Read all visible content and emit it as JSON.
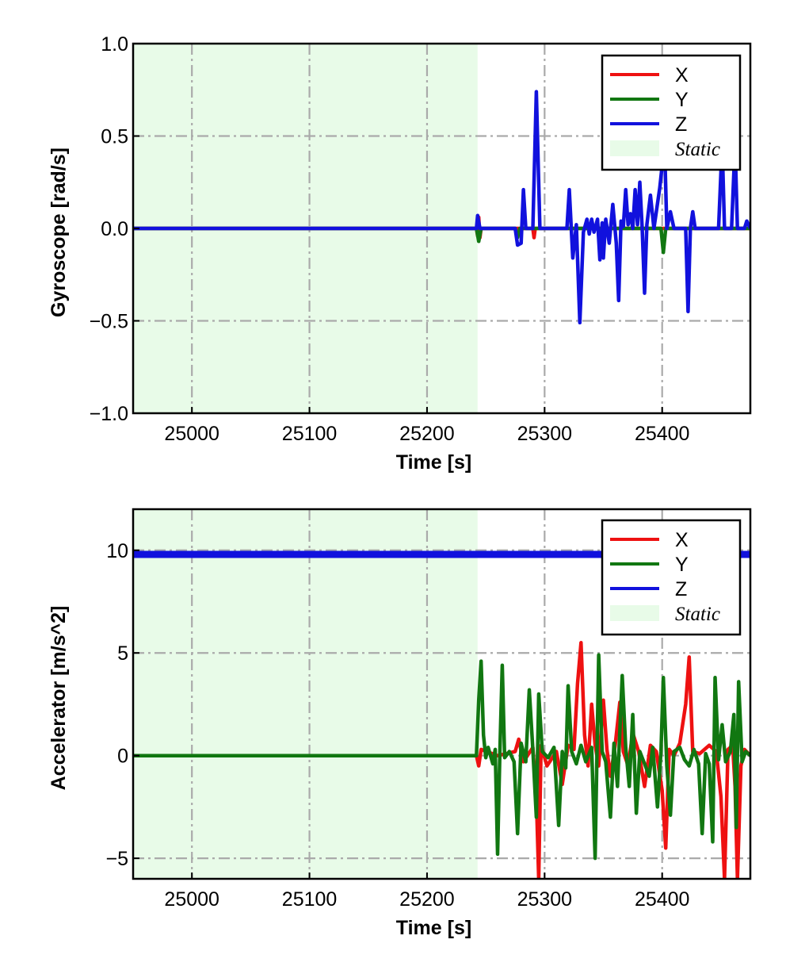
{
  "chart_data": [
    {
      "type": "line",
      "xlabel": "Time [s]",
      "ylabel": "Gyroscope [rad/s]",
      "xlim": [
        24950,
        25475
      ],
      "ylim": [
        -1.0,
        1.0
      ],
      "xticks": [
        25000,
        25100,
        25200,
        25300,
        25400
      ],
      "yticks": [
        1.0,
        0.5,
        0.0,
        -0.5,
        -1.0
      ],
      "ytick_labels": [
        "1.0",
        "0.5",
        "0.0",
        "−0.5",
        "−1.0"
      ],
      "grid": true,
      "legend_position": "top-right",
      "static_region": {
        "label": "Static",
        "x": [
          24950,
          25243
        ],
        "color": "#e8fbe8"
      },
      "series": [
        {
          "name": "X",
          "color": "#ee1111",
          "points": [
            [
              24950,
              0
            ],
            [
              25242,
              0
            ],
            [
              25243,
              -0.04
            ],
            [
              25244,
              0.06
            ],
            [
              25245,
              -0.05
            ],
            [
              25246,
              0
            ],
            [
              25290,
              0
            ],
            [
              25291,
              -0.05
            ],
            [
              25292,
              0
            ],
            [
              25475,
              0
            ]
          ]
        },
        {
          "name": "Y",
          "color": "#117711",
          "points": [
            [
              24950,
              0
            ],
            [
              25242,
              0
            ],
            [
              25244,
              -0.07
            ],
            [
              25246,
              0
            ],
            [
              25275,
              0
            ],
            [
              25277,
              -0.05
            ],
            [
              25279,
              0
            ],
            [
              25399,
              0
            ],
            [
              25401,
              -0.13
            ],
            [
              25403,
              0
            ],
            [
              25475,
              0
            ]
          ]
        },
        {
          "name": "Z",
          "color": "#1111dd",
          "points": [
            [
              24950,
              0
            ],
            [
              25242,
              0
            ],
            [
              25243,
              0.07
            ],
            [
              25245,
              0
            ],
            [
              25275,
              0
            ],
            [
              25277,
              -0.09
            ],
            [
              25280,
              -0.08
            ],
            [
              25282,
              0.21
            ],
            [
              25284,
              0
            ],
            [
              25290,
              0
            ],
            [
              25293,
              0.74
            ],
            [
              25296,
              0
            ],
            [
              25319,
              0
            ],
            [
              25321,
              0.21
            ],
            [
              25324,
              -0.16
            ],
            [
              25327,
              0.02
            ],
            [
              25330,
              -0.51
            ],
            [
              25333,
              -0.02
            ],
            [
              25336,
              0.05
            ],
            [
              25338,
              -0.03
            ],
            [
              25340,
              0.05
            ],
            [
              25342,
              -0.02
            ],
            [
              25345,
              0.05
            ],
            [
              25347,
              -0.17
            ],
            [
              25349,
              0.03
            ],
            [
              25350,
              -0.16
            ],
            [
              25352,
              0.05
            ],
            [
              25355,
              -0.08
            ],
            [
              25358,
              0.13
            ],
            [
              25361,
              -0.08
            ],
            [
              25363,
              -0.39
            ],
            [
              25365,
              0.04
            ],
            [
              25367,
              0.01
            ],
            [
              25369,
              0.21
            ],
            [
              25371,
              0.02
            ],
            [
              25373,
              0.08
            ],
            [
              25375,
              0.0
            ],
            [
              25377,
              0.21
            ],
            [
              25379,
              0.02
            ],
            [
              25381,
              0.25
            ],
            [
              25383,
              0.0
            ],
            [
              25385,
              -0.35
            ],
            [
              25387,
              0.02
            ],
            [
              25390,
              0.18
            ],
            [
              25393,
              0.0
            ],
            [
              25398,
              0.22
            ],
            [
              25402,
              0.46
            ],
            [
              25404,
              0.0
            ],
            [
              25407,
              0.09
            ],
            [
              25410,
              0.0
            ],
            [
              25420,
              0
            ],
            [
              25422,
              -0.45
            ],
            [
              25424,
              0.0
            ],
            [
              25426,
              0.09
            ],
            [
              25428,
              0.0
            ],
            [
              25448,
              0
            ],
            [
              25451,
              0.46
            ],
            [
              25453,
              0.0
            ],
            [
              25459,
              0
            ],
            [
              25462,
              0.46
            ],
            [
              25464,
              0.0
            ],
            [
              25470,
              0.0
            ],
            [
              25472,
              0.04
            ],
            [
              25475,
              0.0
            ]
          ]
        }
      ]
    },
    {
      "type": "line",
      "xlabel": "Time [s]",
      "ylabel": "Accelerator [m/s^2]",
      "xlim": [
        24950,
        25475
      ],
      "ylim": [
        -6,
        12
      ],
      "xticks": [
        25000,
        25100,
        25200,
        25300,
        25400
      ],
      "yticks": [
        10,
        5,
        0,
        -5
      ],
      "ytick_labels": [
        "10",
        "5",
        "0",
        "−5"
      ],
      "grid": true,
      "legend_position": "top-right",
      "static_region": {
        "label": "Static",
        "x": [
          24950,
          25243
        ],
        "color": "#e8fbe8"
      },
      "series": [
        {
          "name": "X",
          "color": "#ee1111",
          "points": [
            [
              24950,
              0
            ],
            [
              25242,
              0
            ],
            [
              25244,
              -0.5
            ],
            [
              25246,
              0.3
            ],
            [
              25260,
              0
            ],
            [
              25275,
              0.2
            ],
            [
              25278,
              0.8
            ],
            [
              25282,
              -0.3
            ],
            [
              25290,
              0.4
            ],
            [
              25293,
              -2.0
            ],
            [
              25295,
              -6.0
            ],
            [
              25297,
              0.5
            ],
            [
              25302,
              -0.5
            ],
            [
              25310,
              0.2
            ],
            [
              25315,
              -1.4
            ],
            [
              25320,
              0.5
            ],
            [
              25325,
              0.3
            ],
            [
              25328,
              3.5
            ],
            [
              25331,
              5.5
            ],
            [
              25334,
              1.0
            ],
            [
              25337,
              -0.5
            ],
            [
              25340,
              2.5
            ],
            [
              25343,
              0.5
            ],
            [
              25346,
              -0.5
            ],
            [
              25350,
              2.7
            ],
            [
              25353,
              0.3
            ],
            [
              25356,
              -1.0
            ],
            [
              25360,
              0.5
            ],
            [
              25364,
              2.6
            ],
            [
              25367,
              0.2
            ],
            [
              25371,
              -0.5
            ],
            [
              25375,
              1.1
            ],
            [
              25380,
              0.2
            ],
            [
              25385,
              -1.5
            ],
            [
              25390,
              0.5
            ],
            [
              25395,
              0.2
            ],
            [
              25400,
              -1.7
            ],
            [
              25403,
              -4.5
            ],
            [
              25406,
              0.3
            ],
            [
              25410,
              0.0
            ],
            [
              25415,
              0.6
            ],
            [
              25420,
              2.5
            ],
            [
              25423,
              4.8
            ],
            [
              25426,
              0.2
            ],
            [
              25432,
              0.1
            ],
            [
              25440,
              0.5
            ],
            [
              25446,
              0.2
            ],
            [
              25450,
              -2.0
            ],
            [
              25453,
              -6.0
            ],
            [
              25456,
              0.3
            ],
            [
              25460,
              0.5
            ],
            [
              25462,
              -1.5
            ],
            [
              25464,
              -6.0
            ],
            [
              25467,
              -0.5
            ],
            [
              25470,
              0.3
            ],
            [
              25475,
              0
            ]
          ]
        },
        {
          "name": "Y",
          "color": "#117711",
          "points": [
            [
              24950,
              0
            ],
            [
              25242,
              0
            ],
            [
              25244,
              2.7
            ],
            [
              25246,
              4.6
            ],
            [
              25248,
              1.0
            ],
            [
              25250,
              -0.1
            ],
            [
              25252,
              0.4
            ],
            [
              25256,
              -0.4
            ],
            [
              25258,
              0.3
            ],
            [
              25260,
              -4.8
            ],
            [
              25262,
              0.2
            ],
            [
              25264,
              4.4
            ],
            [
              25266,
              -0.1
            ],
            [
              25270,
              0.2
            ],
            [
              25274,
              -0.3
            ],
            [
              25277,
              -3.8
            ],
            [
              25280,
              0.6
            ],
            [
              25284,
              -0.3
            ],
            [
              25287,
              3.2
            ],
            [
              25290,
              0.3
            ],
            [
              25293,
              -3.0
            ],
            [
              25295,
              3.0
            ],
            [
              25298,
              0.2
            ],
            [
              25303,
              -0.1
            ],
            [
              25308,
              0.4
            ],
            [
              25312,
              -3.4
            ],
            [
              25315,
              0.2
            ],
            [
              25318,
              -0.6
            ],
            [
              25320,
              3.4
            ],
            [
              25323,
              0.2
            ],
            [
              25327,
              -0.4
            ],
            [
              25331,
              0.5
            ],
            [
              25335,
              -0.3
            ],
            [
              25340,
              0.4
            ],
            [
              25343,
              -5.0
            ],
            [
              25346,
              4.9
            ],
            [
              25349,
              0.2
            ],
            [
              25352,
              -0.3
            ],
            [
              25356,
              -3.0
            ],
            [
              25359,
              0.6
            ],
            [
              25362,
              -1.5
            ],
            [
              25366,
              3.9
            ],
            [
              25369,
              0.4
            ],
            [
              25372,
              -1.5
            ],
            [
              25375,
              2.0
            ],
            [
              25378,
              -2.8
            ],
            [
              25381,
              0.2
            ],
            [
              25385,
              -0.4
            ],
            [
              25389,
              -1.0
            ],
            [
              25392,
              0.4
            ],
            [
              25396,
              -2.5
            ],
            [
              25399,
              0.2
            ],
            [
              25401,
              3.8
            ],
            [
              25404,
              -0.5
            ],
            [
              25407,
              -2.9
            ],
            [
              25410,
              0.2
            ],
            [
              25415,
              0.4
            ],
            [
              25419,
              -0.2
            ],
            [
              25423,
              -0.5
            ],
            [
              25427,
              0.3
            ],
            [
              25431,
              -0.4
            ],
            [
              25434,
              -3.8
            ],
            [
              25437,
              0.1
            ],
            [
              25440,
              -0.4
            ],
            [
              25443,
              -4.2
            ],
            [
              25445,
              3.8
            ],
            [
              25448,
              -0.2
            ],
            [
              25451,
              1.5
            ],
            [
              25454,
              -0.3
            ],
            [
              25458,
              0.2
            ],
            [
              25461,
              2.0
            ],
            [
              25463,
              -3.5
            ],
            [
              25465,
              3.6
            ],
            [
              25468,
              -0.3
            ],
            [
              25471,
              0.2
            ],
            [
              25475,
              0
            ]
          ]
        },
        {
          "name": "Z",
          "color": "#1111dd",
          "points": [
            [
              24950,
              9.8
            ],
            [
              25475,
              9.8
            ]
          ]
        }
      ]
    }
  ]
}
